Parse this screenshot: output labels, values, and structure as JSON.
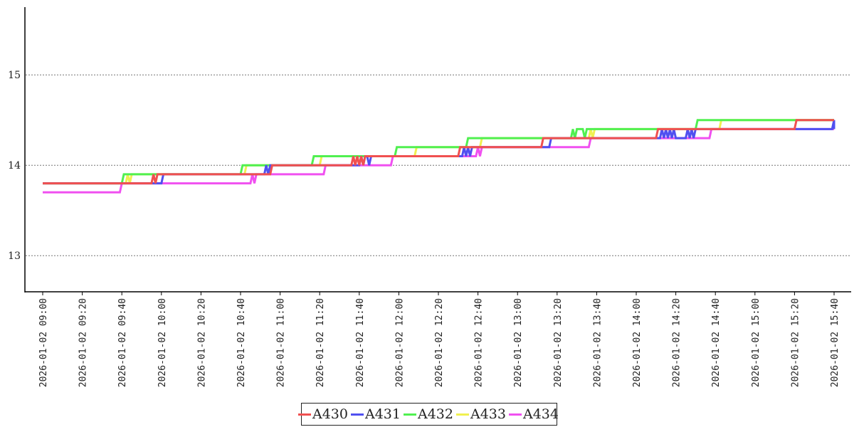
{
  "chart_data": {
    "type": "line",
    "step": true,
    "title": "",
    "xlabel": "",
    "ylabel": "",
    "ylim": [
      12.6,
      15.75
    ],
    "xlim": [
      "2026-01-02 09:00",
      "2026-01-02 15:40"
    ],
    "y_ticks": [
      "13",
      "14",
      "15"
    ],
    "x_ticks": [
      "2026-01-02 09:00",
      "2026-01-02 09:20",
      "2026-01-02 09:40",
      "2026-01-02 10:00",
      "2026-01-02 10:20",
      "2026-01-02 10:40",
      "2026-01-02 11:00",
      "2026-01-02 11:20",
      "2026-01-02 11:40",
      "2026-01-02 12:00",
      "2026-01-02 12:20",
      "2026-01-02 12:40",
      "2026-01-02 13:00",
      "2026-01-02 13:20",
      "2026-01-02 13:40",
      "2026-01-02 14:00",
      "2026-01-02 14:20",
      "2026-01-02 14:40",
      "2026-01-02 15:00",
      "2026-01-02 15:20",
      "2026-01-02 15:40"
    ],
    "grid": "horizontal-dotted",
    "legend_position": "bottom-center",
    "series": [
      {
        "name": "A430",
        "color": "#f05050",
        "points": [
          [
            "2026-01-02 09:00",
            13.8
          ],
          [
            "2026-01-02 09:55",
            13.8
          ],
          [
            "2026-01-02 09:56",
            13.9
          ],
          [
            "2026-01-02 09:57",
            13.8
          ],
          [
            "2026-01-02 09:58",
            13.9
          ],
          [
            "2026-01-02 10:55",
            13.9
          ],
          [
            "2026-01-02 10:56",
            14.0
          ],
          [
            "2026-01-02 11:36",
            14.0
          ],
          [
            "2026-01-02 11:37",
            14.1
          ],
          [
            "2026-01-02 11:38",
            14.0
          ],
          [
            "2026-01-02 11:39",
            14.1
          ],
          [
            "2026-01-02 11:40",
            14.0
          ],
          [
            "2026-01-02 11:41",
            14.1
          ],
          [
            "2026-01-02 11:42",
            14.0
          ],
          [
            "2026-01-02 11:43",
            14.1
          ],
          [
            "2026-01-02 12:30",
            14.1
          ],
          [
            "2026-01-02 12:31",
            14.2
          ],
          [
            "2026-01-02 13:12",
            14.2
          ],
          [
            "2026-01-02 13:13",
            14.3
          ],
          [
            "2026-01-02 14:10",
            14.3
          ],
          [
            "2026-01-02 14:11",
            14.4
          ],
          [
            "2026-01-02 15:20",
            14.4
          ],
          [
            "2026-01-02 15:21",
            14.5
          ],
          [
            "2026-01-02 15:40",
            14.5
          ]
        ]
      },
      {
        "name": "A431",
        "color": "#5050f0",
        "points": [
          [
            "2026-01-02 09:00",
            13.8
          ],
          [
            "2026-01-02 10:00",
            13.8
          ],
          [
            "2026-01-02 10:01",
            13.9
          ],
          [
            "2026-01-02 10:52",
            13.9
          ],
          [
            "2026-01-02 10:53",
            14.0
          ],
          [
            "2026-01-02 10:54",
            13.9
          ],
          [
            "2026-01-02 10:55",
            14.0
          ],
          [
            "2026-01-02 11:40",
            14.0
          ],
          [
            "2026-01-02 11:41",
            14.1
          ],
          [
            "2026-01-02 11:42",
            14.0
          ],
          [
            "2026-01-02 11:43",
            14.1
          ],
          [
            "2026-01-02 11:44",
            14.1
          ],
          [
            "2026-01-02 11:45",
            14.0
          ],
          [
            "2026-01-02 11:46",
            14.1
          ],
          [
            "2026-01-02 12:32",
            14.1
          ],
          [
            "2026-01-02 12:33",
            14.2
          ],
          [
            "2026-01-02 12:34",
            14.1
          ],
          [
            "2026-01-02 12:35",
            14.2
          ],
          [
            "2026-01-02 12:36",
            14.1
          ],
          [
            "2026-01-02 12:37",
            14.2
          ],
          [
            "2026-01-02 13:16",
            14.2
          ],
          [
            "2026-01-02 13:17",
            14.3
          ],
          [
            "2026-01-02 14:12",
            14.3
          ],
          [
            "2026-01-02 14:13",
            14.4
          ],
          [
            "2026-01-02 14:14",
            14.3
          ],
          [
            "2026-01-02 14:15",
            14.4
          ],
          [
            "2026-01-02 14:16",
            14.3
          ],
          [
            "2026-01-02 14:17",
            14.4
          ],
          [
            "2026-01-02 14:18",
            14.3
          ],
          [
            "2026-01-02 14:19",
            14.4
          ],
          [
            "2026-01-02 14:20",
            14.3
          ],
          [
            "2026-01-02 14:25",
            14.3
          ],
          [
            "2026-01-02 14:26",
            14.4
          ],
          [
            "2026-01-02 14:27",
            14.3
          ],
          [
            "2026-01-02 14:28",
            14.4
          ],
          [
            "2026-01-02 14:29",
            14.3
          ],
          [
            "2026-01-02 14:30",
            14.4
          ],
          [
            "2026-01-02 15:39",
            14.4
          ],
          [
            "2026-01-02 15:40",
            14.5
          ],
          [
            "2026-01-02 15:40",
            14.4
          ]
        ]
      },
      {
        "name": "A432",
        "color": "#50f050",
        "points": [
          [
            "2026-01-02 09:00",
            13.8
          ],
          [
            "2026-01-02 09:40",
            13.8
          ],
          [
            "2026-01-02 09:41",
            13.9
          ],
          [
            "2026-01-02 10:40",
            13.9
          ],
          [
            "2026-01-02 10:41",
            14.0
          ],
          [
            "2026-01-02 11:16",
            14.0
          ],
          [
            "2026-01-02 11:17",
            14.1
          ],
          [
            "2026-01-02 11:58",
            14.1
          ],
          [
            "2026-01-02 11:59",
            14.2
          ],
          [
            "2026-01-02 12:34",
            14.2
          ],
          [
            "2026-01-02 12:35",
            14.3
          ],
          [
            "2026-01-02 13:27",
            14.3
          ],
          [
            "2026-01-02 13:28",
            14.4
          ],
          [
            "2026-01-02 13:29",
            14.3
          ],
          [
            "2026-01-02 13:30",
            14.4
          ],
          [
            "2026-01-02 13:33",
            14.4
          ],
          [
            "2026-01-02 13:34",
            14.3
          ],
          [
            "2026-01-02 13:35",
            14.4
          ],
          [
            "2026-01-02 14:30",
            14.4
          ],
          [
            "2026-01-02 14:31",
            14.5
          ],
          [
            "2026-01-02 15:40",
            14.5
          ]
        ]
      },
      {
        "name": "A433",
        "color": "#f0f050",
        "points": [
          [
            "2026-01-02 09:00",
            13.8
          ],
          [
            "2026-01-02 09:42",
            13.8
          ],
          [
            "2026-01-02 09:43",
            13.9
          ],
          [
            "2026-01-02 09:44",
            13.8
          ],
          [
            "2026-01-02 09:45",
            13.9
          ],
          [
            "2026-01-02 10:42",
            13.9
          ],
          [
            "2026-01-02 10:43",
            14.0
          ],
          [
            "2026-01-02 11:20",
            14.0
          ],
          [
            "2026-01-02 11:21",
            14.1
          ],
          [
            "2026-01-02 12:08",
            14.1
          ],
          [
            "2026-01-02 12:09",
            14.2
          ],
          [
            "2026-01-02 12:41",
            14.2
          ],
          [
            "2026-01-02 12:42",
            14.3
          ],
          [
            "2026-01-02 13:36",
            14.3
          ],
          [
            "2026-01-02 13:37",
            14.4
          ],
          [
            "2026-01-02 13:38",
            14.3
          ],
          [
            "2026-01-02 13:39",
            14.4
          ],
          [
            "2026-01-02 14:42",
            14.4
          ],
          [
            "2026-01-02 14:43",
            14.5
          ],
          [
            "2026-01-02 15:40",
            14.5
          ]
        ]
      },
      {
        "name": "A434",
        "color": "#f050f0",
        "points": [
          [
            "2026-01-02 09:00",
            13.7
          ],
          [
            "2026-01-02 09:39",
            13.7
          ],
          [
            "2026-01-02 09:40",
            13.8
          ],
          [
            "2026-01-02 10:45",
            13.8
          ],
          [
            "2026-01-02 10:46",
            13.9
          ],
          [
            "2026-01-02 10:47",
            13.8
          ],
          [
            "2026-01-02 10:48",
            13.9
          ],
          [
            "2026-01-02 11:22",
            13.9
          ],
          [
            "2026-01-02 11:23",
            14.0
          ],
          [
            "2026-01-02 11:56",
            14.0
          ],
          [
            "2026-01-02 11:57",
            14.1
          ],
          [
            "2026-01-02 12:39",
            14.1
          ],
          [
            "2026-01-02 12:40",
            14.2
          ],
          [
            "2026-01-02 12:41",
            14.1
          ],
          [
            "2026-01-02 12:42",
            14.2
          ],
          [
            "2026-01-02 13:16",
            14.2
          ],
          [
            "2026-01-02 13:17",
            14.2
          ],
          [
            "2026-01-02 13:36",
            14.2
          ],
          [
            "2026-01-02 13:37",
            14.3
          ],
          [
            "2026-01-02 14:37",
            14.3
          ],
          [
            "2026-01-02 14:38",
            14.4
          ],
          [
            "2026-01-02 15:40",
            14.4
          ]
        ]
      }
    ]
  }
}
